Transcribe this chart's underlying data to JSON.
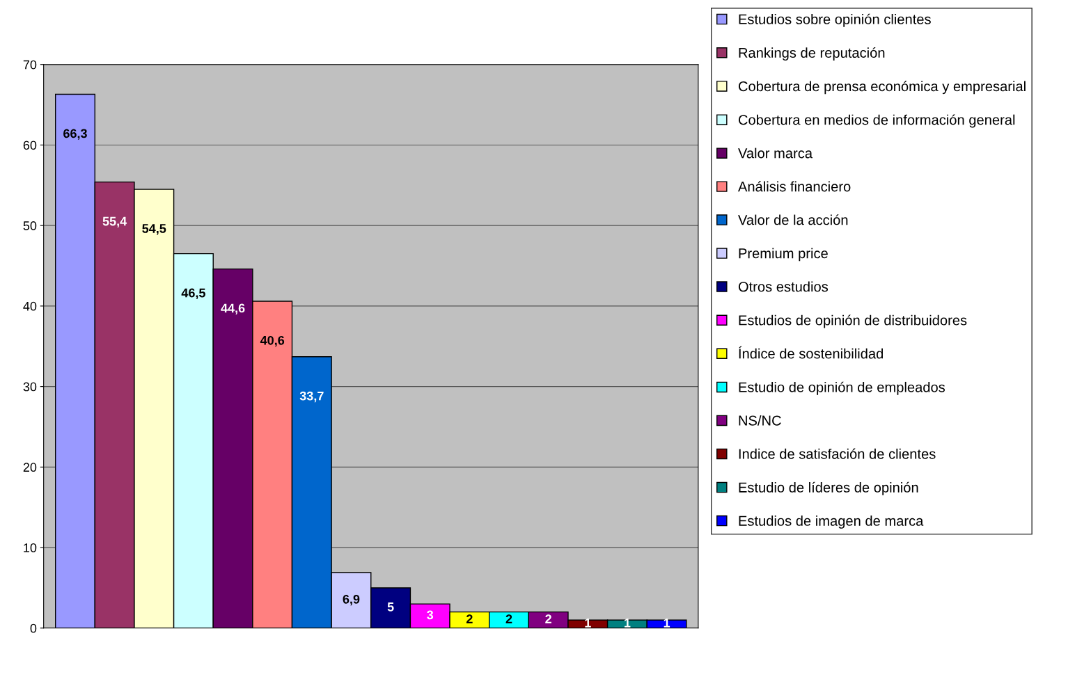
{
  "chart_data": {
    "type": "bar",
    "categories": [
      null
    ],
    "series": [
      {
        "name": "Estudios sobre opinión clientes",
        "color": "#9999ff",
        "values": [
          66.3
        ],
        "value_labels": [
          "66,3"
        ]
      },
      {
        "name": "Rankings de reputación",
        "color": "#993366",
        "values": [
          55.4
        ],
        "value_labels": [
          "55,4"
        ]
      },
      {
        "name": "Cobertura de prensa económica y empresarial",
        "color": "#ffffcc",
        "values": [
          54.5
        ],
        "value_labels": [
          "54,5"
        ]
      },
      {
        "name": "Cobertura en medios de información general",
        "color": "#ccffff",
        "values": [
          46.5
        ],
        "value_labels": [
          "46,5"
        ]
      },
      {
        "name": "Valor marca",
        "color": "#660066",
        "values": [
          44.6
        ],
        "value_labels": [
          "44,6"
        ]
      },
      {
        "name": "Análisis financiero",
        "color": "#ff8080",
        "values": [
          40.6
        ],
        "value_labels": [
          "40,6"
        ]
      },
      {
        "name": "Valor de la acción",
        "color": "#0066cc",
        "values": [
          33.7
        ],
        "value_labels": [
          "33,7"
        ]
      },
      {
        "name": "Premium price",
        "color": "#ccccff",
        "values": [
          6.9
        ],
        "value_labels": [
          "6,9"
        ]
      },
      {
        "name": "Otros estudios",
        "color": "#000080",
        "values": [
          5
        ],
        "value_labels": [
          "5"
        ]
      },
      {
        "name": "Estudios de opinión de distribuidores",
        "color": "#ff00ff",
        "values": [
          3
        ],
        "value_labels": [
          "3"
        ]
      },
      {
        "name": "Índice de sostenibilidad",
        "color": "#ffff00",
        "values": [
          2
        ],
        "value_labels": [
          "2"
        ]
      },
      {
        "name": "Estudio de opinión de empleados",
        "color": "#00ffff",
        "values": [
          2
        ],
        "value_labels": [
          "2"
        ]
      },
      {
        "name": "NS/NC",
        "color": "#800080",
        "values": [
          2
        ],
        "value_labels": [
          "2"
        ]
      },
      {
        "name": "Indice de satisfación de clientes",
        "color": "#800000",
        "values": [
          1
        ],
        "value_labels": [
          "1"
        ]
      },
      {
        "name": "Estudio de líderes de opinión",
        "color": "#008080",
        "values": [
          1
        ],
        "value_labels": [
          "1"
        ]
      },
      {
        "name": "Estudios de imagen de marca",
        "color": "#0000ff",
        "values": [
          1
        ],
        "value_labels": [
          "1"
        ]
      }
    ],
    "ylim": [
      0,
      70
    ],
    "yticks": [
      0,
      10,
      20,
      30,
      40,
      50,
      60,
      70
    ],
    "grid": "y",
    "legend": "right",
    "tick_labels": "y"
  }
}
